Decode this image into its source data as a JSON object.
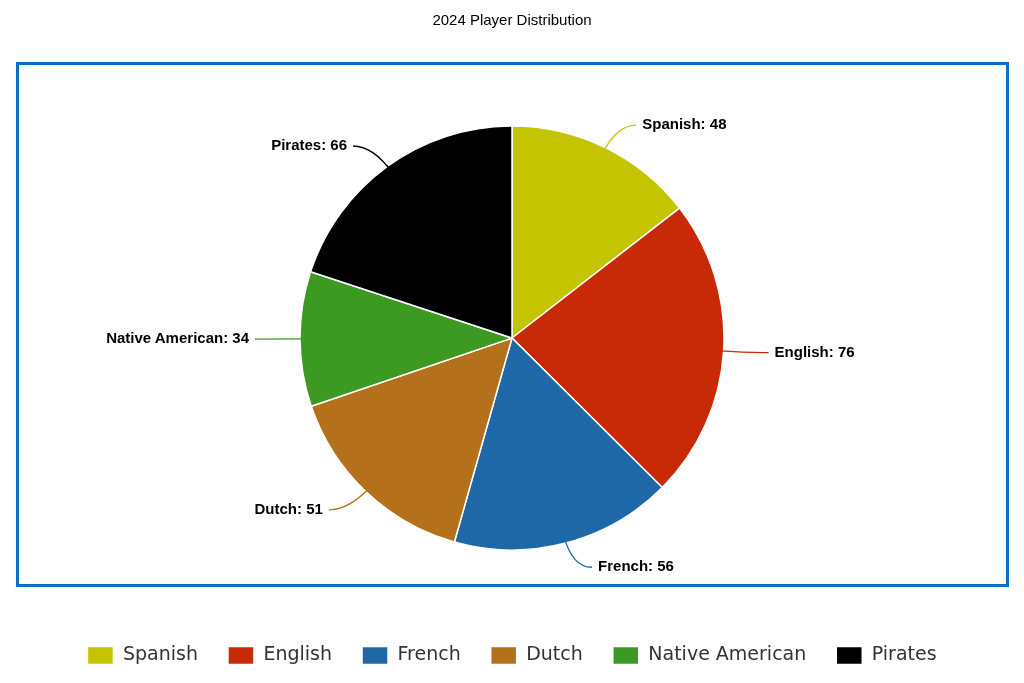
{
  "chart_data": {
    "type": "pie",
    "title": "2024 Player Distribution",
    "categories": [
      "Spanish",
      "English",
      "French",
      "Dutch",
      "Native American",
      "Pirates"
    ],
    "values": [
      48,
      76,
      56,
      51,
      34,
      66
    ],
    "value_labels": [
      "Spanish: 48",
      "English: 76",
      "French: 56",
      "Dutch: 51",
      "Native American: 34",
      "Pirates: 66"
    ],
    "colors": [
      "#c4c400",
      "#c82a08",
      "#1f68a8",
      "#b5701c",
      "#3c9a22",
      "#000000"
    ],
    "legend": "bottom"
  }
}
